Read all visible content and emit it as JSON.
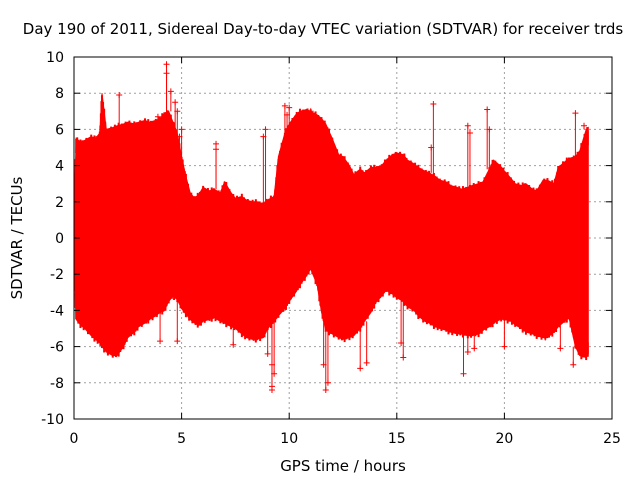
{
  "chart_data": {
    "type": "scatter",
    "title": "Day 190 of 2011, Sidereal Day-to-day VTEC variation (SDTVAR) for receiver trds",
    "xlabel": "GPS time / hours",
    "ylabel": "SDTVAR / TECUs",
    "xlim": [
      0,
      25
    ],
    "ylim": [
      -10,
      10
    ],
    "xticks": [
      0,
      5,
      10,
      15,
      20,
      25
    ],
    "yticks": [
      -10,
      -8,
      -6,
      -4,
      -2,
      0,
      2,
      4,
      6,
      8,
      10
    ],
    "grid": true,
    "color": "#ff0000",
    "marker": "plus",
    "envelope": {
      "x": [
        0.0,
        0.1,
        0.3,
        0.5,
        0.8,
        1.0,
        1.2,
        1.3,
        1.5,
        1.8,
        2.0,
        2.3,
        2.5,
        2.8,
        3.0,
        3.3,
        3.5,
        3.8,
        4.0,
        4.2,
        4.4,
        4.6,
        4.8,
        5.0,
        5.2,
        5.4,
        5.6,
        5.8,
        6.0,
        6.3,
        6.5,
        6.8,
        7.0,
        7.3,
        7.5,
        7.8,
        8.0,
        8.3,
        8.5,
        8.8,
        9.0,
        9.3,
        9.5,
        9.8,
        10.0,
        10.3,
        10.5,
        10.8,
        11.0,
        11.3,
        11.5,
        11.7,
        12.0,
        12.3,
        12.5,
        12.8,
        13.0,
        13.3,
        13.5,
        13.8,
        14.0,
        14.3,
        14.5,
        14.8,
        15.0,
        15.3,
        15.5,
        15.8,
        16.0,
        16.3,
        16.5,
        16.8,
        17.0,
        17.3,
        17.5,
        17.8,
        18.0,
        18.3,
        18.5,
        18.8,
        19.0,
        19.3,
        19.5,
        19.8,
        20.0,
        20.3,
        20.5,
        20.8,
        21.0,
        21.3,
        21.5,
        21.8,
        22.0,
        22.3,
        22.5,
        22.8,
        23.0,
        23.3,
        23.5,
        23.8,
        23.9
      ],
      "upper": [
        1.5,
        5.5,
        5.3,
        5.4,
        5.6,
        5.5,
        5.8,
        8.0,
        6.0,
        6.1,
        6.2,
        6.3,
        6.4,
        6.3,
        6.4,
        6.5,
        6.4,
        6.5,
        6.6,
        6.9,
        7.0,
        6.4,
        5.8,
        4.5,
        3.4,
        2.5,
        2.2,
        2.4,
        2.8,
        2.6,
        2.7,
        2.5,
        3.1,
        2.5,
        2.2,
        2.3,
        2.1,
        2.0,
        2.0,
        1.9,
        2.1,
        2.3,
        4.5,
        5.8,
        6.3,
        6.8,
        7.0,
        7.1,
        7.0,
        6.8,
        6.6,
        6.3,
        5.5,
        4.6,
        4.5,
        4.0,
        3.5,
        3.8,
        3.6,
        3.9,
        3.9,
        4.0,
        4.3,
        4.6,
        4.7,
        4.6,
        4.3,
        4.1,
        3.9,
        3.7,
        3.6,
        3.4,
        3.2,
        3.1,
        2.9,
        2.8,
        2.7,
        2.8,
        2.9,
        3.0,
        3.1,
        3.8,
        4.3,
        4.0,
        3.7,
        3.3,
        3.0,
        2.9,
        3.0,
        2.7,
        2.6,
        3.2,
        3.2,
        3.0,
        3.9,
        4.2,
        4.4,
        4.5,
        4.8,
        6.0,
        6.1
      ],
      "lower": [
        -1.5,
        -4.5,
        -4.8,
        -5.0,
        -5.4,
        -5.6,
        -5.8,
        -6.0,
        -6.3,
        -6.5,
        -6.5,
        -6.0,
        -5.5,
        -5.2,
        -4.9,
        -4.7,
        -4.5,
        -4.3,
        -4.1,
        -4.0,
        -3.5,
        -3.2,
        -3.4,
        -3.9,
        -4.2,
        -4.5,
        -4.7,
        -4.8,
        -4.6,
        -4.5,
        -4.4,
        -4.6,
        -4.7,
        -4.9,
        -5.0,
        -5.3,
        -5.5,
        -5.6,
        -5.6,
        -5.5,
        -5.0,
        -4.6,
        -4.3,
        -3.9,
        -3.5,
        -3.0,
        -2.6,
        -2.1,
        -1.7,
        -2.6,
        -4.1,
        -5.1,
        -5.3,
        -5.5,
        -5.6,
        -5.5,
        -5.4,
        -5.0,
        -4.6,
        -4.1,
        -3.6,
        -3.2,
        -2.9,
        -3.1,
        -3.3,
        -3.5,
        -3.8,
        -4.0,
        -4.3,
        -4.6,
        -4.7,
        -4.9,
        -5.0,
        -5.1,
        -5.2,
        -5.3,
        -5.3,
        -5.4,
        -5.4,
        -5.3,
        -5.1,
        -4.9,
        -4.7,
        -4.5,
        -4.5,
        -4.6,
        -4.8,
        -5.0,
        -5.2,
        -5.3,
        -5.4,
        -5.5,
        -5.5,
        -5.2,
        -4.9,
        -4.6,
        -4.4,
        -6.0,
        -6.5,
        -6.6,
        -6.4
      ]
    },
    "outliers": [
      [
        4.3,
        9.6
      ],
      [
        4.3,
        9.1
      ],
      [
        4.5,
        8.1
      ],
      [
        4.7,
        7.5
      ],
      [
        4.8,
        7.0
      ],
      [
        5.0,
        6.0
      ],
      [
        4.9,
        5.6
      ],
      [
        6.6,
        5.2
      ],
      [
        6.6,
        4.9
      ],
      [
        8.9,
        6.0
      ],
      [
        8.8,
        5.6
      ],
      [
        9.8,
        7.3
      ],
      [
        10.0,
        7.2
      ],
      [
        9.9,
        6.8
      ],
      [
        11.0,
        7.0
      ],
      [
        16.7,
        7.4
      ],
      [
        16.6,
        5.0
      ],
      [
        18.3,
        6.2
      ],
      [
        18.4,
        5.8
      ],
      [
        19.2,
        7.1
      ],
      [
        19.3,
        6.0
      ],
      [
        23.3,
        6.9
      ],
      [
        23.7,
        6.2
      ],
      [
        3.9,
        6.7
      ],
      [
        2.1,
        7.9
      ],
      [
        4.0,
        -5.7
      ],
      [
        4.8,
        -5.7
      ],
      [
        7.4,
        -5.9
      ],
      [
        9.2,
        -8.2
      ],
      [
        9.2,
        -8.4
      ],
      [
        9.3,
        -7.5
      ],
      [
        9.2,
        -7.0
      ],
      [
        9.0,
        -6.4
      ],
      [
        11.7,
        -8.4
      ],
      [
        11.8,
        -8.0
      ],
      [
        11.6,
        -7.0
      ],
      [
        13.3,
        -7.2
      ],
      [
        13.6,
        -6.9
      ],
      [
        15.3,
        -6.6
      ],
      [
        15.2,
        -5.8
      ],
      [
        17.3,
        -4.7
      ],
      [
        18.1,
        -7.5
      ],
      [
        18.3,
        -6.3
      ],
      [
        18.6,
        -6.1
      ],
      [
        20.0,
        -6.0
      ],
      [
        23.2,
        -7.0
      ],
      [
        22.6,
        -6.1
      ],
      [
        21.9,
        -5.5
      ]
    ]
  }
}
